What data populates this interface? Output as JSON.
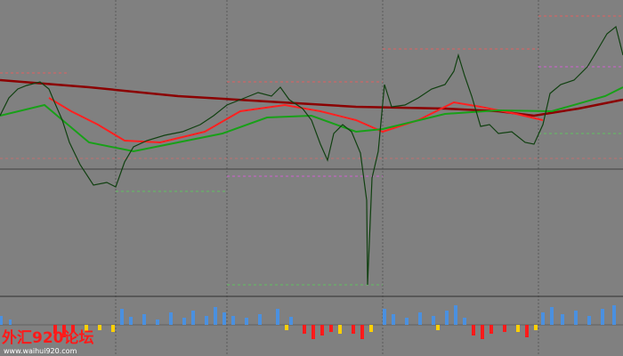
{
  "watermark": {
    "title": "外汇920论坛",
    "url": "www.waihui920.com"
  }
}
